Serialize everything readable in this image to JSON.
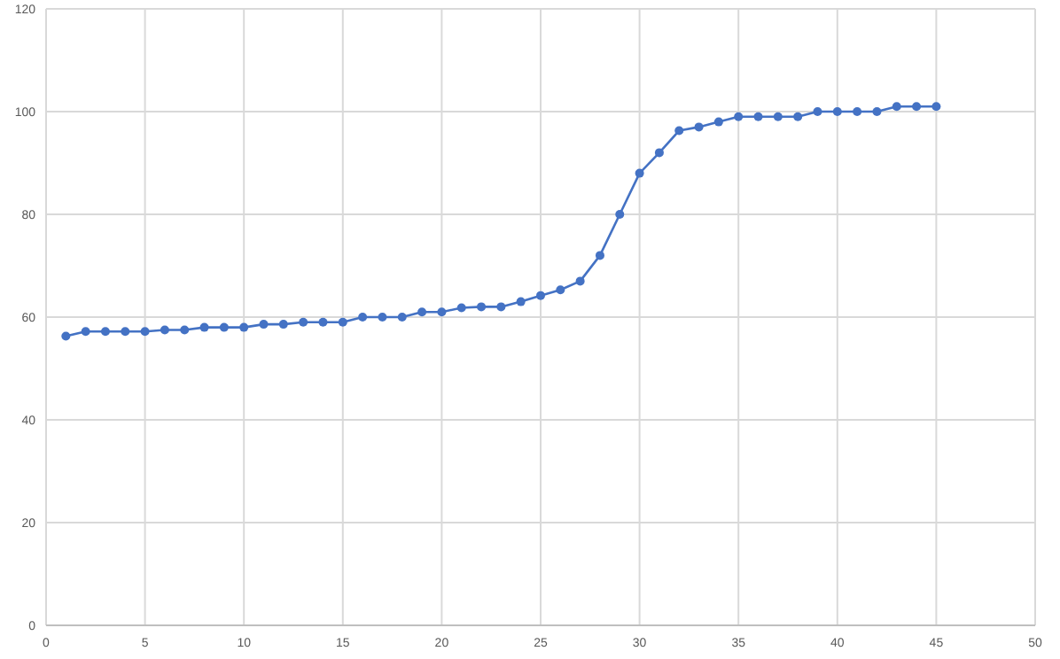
{
  "chart_data": {
    "type": "line",
    "x": [
      1,
      2,
      3,
      4,
      5,
      6,
      7,
      8,
      9,
      10,
      11,
      12,
      13,
      14,
      15,
      16,
      17,
      18,
      19,
      20,
      21,
      22,
      23,
      24,
      25,
      26,
      27,
      28,
      29,
      30,
      31,
      32,
      33,
      34,
      35,
      36,
      37,
      38,
      39,
      40,
      41,
      42,
      43,
      44,
      45
    ],
    "series": [
      {
        "color": "#4472c4",
        "values": [
          56.3,
          57.2,
          57.2,
          57.2,
          57.2,
          57.5,
          57.5,
          58,
          58,
          58,
          58.6,
          58.6,
          59,
          59,
          59,
          60,
          60,
          60,
          61,
          61,
          61.8,
          62,
          62,
          63,
          64.2,
          65.3,
          67,
          72,
          80,
          88,
          92,
          96.3,
          97,
          98,
          99,
          99,
          99,
          99,
          100,
          100,
          100,
          100,
          101,
          101,
          101
        ]
      }
    ],
    "xlim": [
      0,
      50
    ],
    "xticks": [
      0,
      5,
      10,
      15,
      20,
      25,
      30,
      35,
      40,
      45,
      50
    ],
    "ylim": [
      0,
      120
    ],
    "yticks": [
      0,
      20,
      40,
      60,
      80,
      100,
      120
    ],
    "grid": true,
    "marker": "circle",
    "line_style": "solid"
  }
}
